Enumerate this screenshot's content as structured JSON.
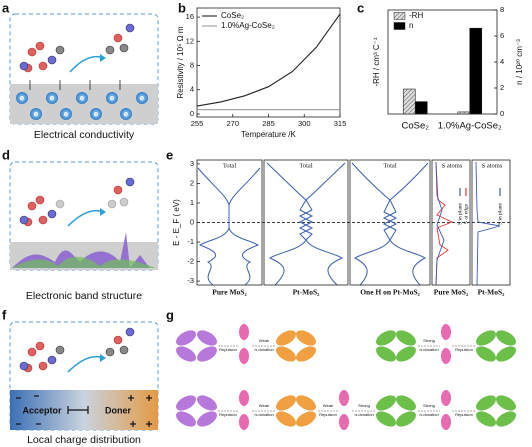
{
  "panel_letters": [
    "a",
    "b",
    "c",
    "d",
    "e",
    "f",
    "g"
  ],
  "captions": {
    "a": "Electrical conductivity",
    "d": "Electronic band structure",
    "f": "Local charge distribution"
  },
  "electron_label": "e",
  "acceptor": "Acceptor",
  "donor": "Doner",
  "chart_data": [
    {
      "type": "line",
      "x": [
        255,
        265,
        275,
        285,
        295,
        305,
        315
      ],
      "xlim": [
        255,
        315
      ],
      "xticks": [
        255,
        270,
        285,
        300,
        315
      ],
      "ylim": [
        -0.5,
        17.5
      ],
      "yticks": [
        0,
        4,
        8,
        12,
        16
      ],
      "xlabel": "Temperature /K",
      "ylabel": "Resistivity / 10⁵ Ω m",
      "series": [
        {
          "name": "CoSe₂",
          "color": "#222222",
          "values": [
            1.3,
            2.0,
            3.0,
            4.5,
            7.0,
            11.0,
            16.5
          ]
        },
        {
          "name": "1.0%Ag-CoSe₂",
          "color": "#999999",
          "values": [
            0.7,
            0.7,
            0.7,
            0.7,
            0.7,
            0.7,
            0.7
          ]
        }
      ]
    },
    {
      "type": "bar",
      "categories": [
        "CoSe₂",
        "1.0%Ag-CoSe₂"
      ],
      "ylim": [
        0,
        1
      ],
      "y2lim": [
        0,
        8
      ],
      "y2ticks": [
        0,
        2,
        4,
        6,
        8
      ],
      "ylabel": "-RH / cm³ C⁻¹",
      "y2label": "n / 10²⁰ cm⁻³",
      "series": [
        {
          "name": "-RH",
          "color": "#bbbbbb",
          "values": [
            0.24,
            0.02
          ]
        },
        {
          "name": "n",
          "color": "#000000",
          "axis": "y2",
          "values": [
            0.95,
            6.6
          ]
        }
      ]
    }
  ],
  "panel_e": {
    "ylabel": "E - E_F ( eV)",
    "ylim": [
      -3.2,
      3.2
    ],
    "yticks": [
      -3,
      -2,
      -1,
      0,
      1,
      2,
      3
    ],
    "titles": [
      "Total",
      "Total",
      "Total",
      "S atoms",
      "S atoms"
    ],
    "labels": [
      "Pure MoS₂",
      "Pt-MoS₂",
      "One H on Pt-MoS₂",
      "Pure MoS₂",
      "Pt-MoS₂"
    ],
    "legend": [
      "S in plane",
      "S at edge",
      "S in plane"
    ]
  },
  "panel_g": {
    "weak": "Weak",
    "strong": "Strong",
    "repulsion": "Repulsion",
    "donation": "π-donation"
  }
}
